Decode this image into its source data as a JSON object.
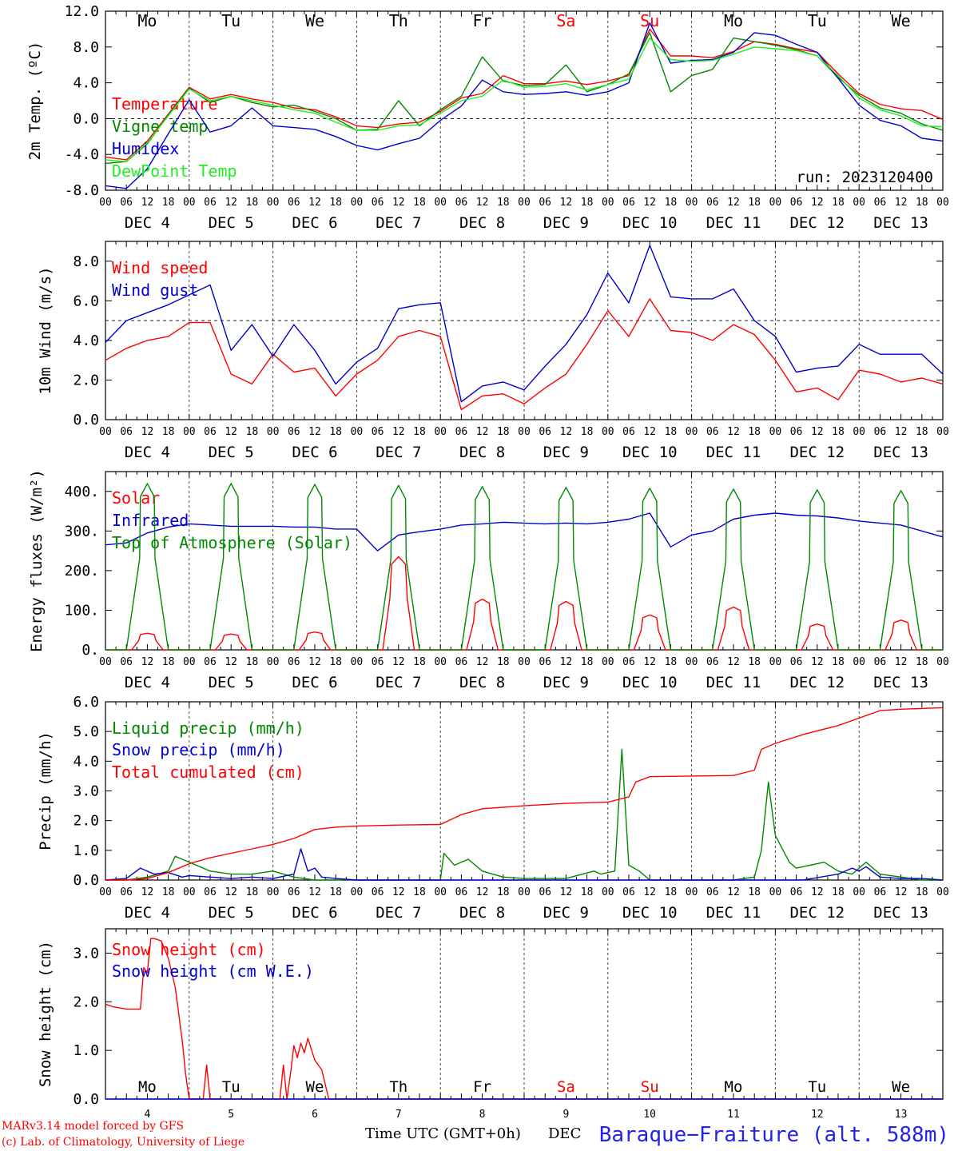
{
  "chart_data": [
    {
      "type": "line",
      "ylabel": "2m Temp. (ºC)",
      "ylim": [
        -8,
        12
      ],
      "yticks": [
        "12.0",
        "8.0",
        "4.0",
        "0.0",
        "-4.0",
        "-8.0"
      ],
      "x_unit": "hours since DEC 4 00 UTC",
      "series": [
        {
          "name": "Temperature",
          "color": "#ff0000",
          "x": [
            0,
            6,
            12,
            18,
            24,
            30,
            36,
            42,
            48,
            54,
            60,
            66,
            72,
            78,
            84,
            90,
            96,
            102,
            108,
            114,
            120,
            126,
            132,
            138,
            144,
            150,
            156,
            162,
            168,
            174,
            180,
            186,
            192,
            198,
            204,
            210,
            216,
            222,
            228,
            234,
            240
          ],
          "y": [
            -4.3,
            -4.6,
            -2.5,
            0.5,
            3.5,
            2.2,
            2.7,
            2.2,
            1.8,
            1.2,
            1.0,
            0.2,
            -0.8,
            -1.0,
            -0.6,
            -0.4,
            0.8,
            2.3,
            2.8,
            4.8,
            3.9,
            3.9,
            4.2,
            3.8,
            4.2,
            4.8,
            10.0,
            7.0,
            7.0,
            6.8,
            7.5,
            8.6,
            8.3,
            7.8,
            7.4,
            5.0,
            2.8,
            1.6,
            1.1,
            0.9,
            -0.1
          ]
        },
        {
          "name": "Vigne temp",
          "color": "#008800",
          "x": [
            0,
            6,
            12,
            18,
            24,
            30,
            36,
            42,
            48,
            54,
            60,
            66,
            72,
            78,
            84,
            90,
            96,
            102,
            108,
            114,
            120,
            126,
            132,
            138,
            144,
            150,
            156,
            162,
            168,
            174,
            180,
            186,
            192,
            198,
            204,
            210,
            216,
            222,
            228,
            234,
            240
          ],
          "y": [
            -5.0,
            -4.8,
            -2.8,
            0.4,
            3.4,
            1.8,
            2.5,
            1.8,
            1.3,
            1.5,
            0.8,
            0.0,
            -1.3,
            -1.2,
            2.0,
            -0.8,
            1.0,
            2.5,
            6.9,
            4.2,
            3.7,
            3.8,
            6.0,
            3.0,
            3.8,
            5.0,
            9.6,
            3.0,
            4.8,
            5.5,
            9.0,
            8.6,
            8.2,
            7.7,
            7.0,
            4.6,
            2.6,
            1.2,
            0.6,
            -0.6,
            -1.3
          ]
        },
        {
          "name": "Humidex",
          "color": "#0000cc",
          "x": [
            0,
            6,
            12,
            18,
            24,
            30,
            36,
            42,
            48,
            54,
            60,
            66,
            72,
            78,
            84,
            90,
            96,
            102,
            108,
            114,
            120,
            126,
            132,
            138,
            144,
            150,
            156,
            162,
            168,
            174,
            180,
            186,
            192,
            198,
            204,
            210,
            216,
            222,
            228,
            234,
            240
          ],
          "y": [
            -7.5,
            -7.8,
            -5.6,
            -1.7,
            2.1,
            -1.5,
            -0.8,
            1.2,
            -0.8,
            -1.0,
            -1.2,
            -2.0,
            -3.0,
            -3.5,
            -2.8,
            -2.2,
            -0.2,
            1.4,
            4.3,
            3.0,
            2.7,
            2.8,
            3.0,
            2.6,
            3.0,
            4.0,
            10.7,
            6.2,
            6.5,
            6.6,
            7.4,
            9.6,
            9.3,
            8.3,
            7.4,
            4.5,
            1.5,
            -0.2,
            -0.8,
            -2.2,
            -2.5
          ]
        },
        {
          "name": "DewPoint Temp",
          "color": "#22ee22",
          "x": [
            0,
            6,
            12,
            18,
            24,
            30,
            36,
            42,
            48,
            54,
            60,
            66,
            72,
            78,
            84,
            90,
            96,
            102,
            108,
            114,
            120,
            126,
            132,
            138,
            144,
            150,
            156,
            162,
            168,
            174,
            180,
            186,
            192,
            198,
            204,
            210,
            216,
            222,
            228,
            234,
            240
          ],
          "y": [
            -4.6,
            -4.8,
            -2.7,
            0.3,
            3.3,
            2.0,
            2.5,
            2.0,
            1.5,
            1.0,
            0.6,
            -0.4,
            -1.3,
            -1.3,
            -0.8,
            -0.7,
            0.6,
            2.0,
            2.5,
            4.3,
            3.5,
            3.6,
            3.9,
            3.2,
            3.8,
            4.4,
            9.0,
            6.6,
            6.4,
            6.5,
            7.2,
            8.0,
            7.8,
            7.6,
            7.0,
            4.8,
            2.3,
            1.0,
            0.3,
            -0.8,
            -0.9
          ]
        }
      ],
      "annotations": [
        "run: 2023120400"
      ]
    },
    {
      "type": "line",
      "ylabel": "10m Wind (m/s)",
      "ylim": [
        0,
        9
      ],
      "yticks": [
        "8.0",
        "6.0",
        "4.0",
        "2.0",
        "0.0"
      ],
      "x_unit": "hours since DEC 4 00 UTC",
      "series": [
        {
          "name": "Wind speed",
          "color": "#ff0000",
          "x": [
            0,
            6,
            12,
            18,
            24,
            30,
            36,
            42,
            48,
            54,
            60,
            66,
            72,
            78,
            84,
            90,
            96,
            102,
            108,
            114,
            120,
            126,
            132,
            138,
            144,
            150,
            156,
            162,
            168,
            174,
            180,
            186,
            192,
            198,
            204,
            210,
            216,
            222,
            228,
            234,
            240
          ],
          "y": [
            3.0,
            3.6,
            4.0,
            4.2,
            4.9,
            4.9,
            2.3,
            1.8,
            3.3,
            2.4,
            2.6,
            1.2,
            2.3,
            3.0,
            4.2,
            4.5,
            4.2,
            0.5,
            1.2,
            1.3,
            0.8,
            1.6,
            2.3,
            3.8,
            5.5,
            4.2,
            6.1,
            4.5,
            4.4,
            4.0,
            4.8,
            4.3,
            3.0,
            1.4,
            1.6,
            1.0,
            2.5,
            2.3,
            1.9,
            2.1,
            1.8
          ]
        },
        {
          "name": "Wind gust",
          "color": "#0000cc",
          "x": [
            0,
            6,
            12,
            18,
            24,
            30,
            36,
            42,
            48,
            54,
            60,
            66,
            72,
            78,
            84,
            90,
            96,
            102,
            108,
            114,
            120,
            126,
            132,
            138,
            144,
            150,
            156,
            162,
            168,
            174,
            180,
            186,
            192,
            198,
            204,
            210,
            216,
            222,
            228,
            234,
            240
          ],
          "y": [
            3.9,
            5.0,
            5.4,
            5.8,
            6.3,
            6.8,
            3.5,
            4.8,
            3.2,
            4.8,
            3.5,
            1.8,
            2.9,
            3.6,
            5.6,
            5.8,
            5.9,
            0.9,
            1.7,
            1.9,
            1.5,
            2.7,
            3.8,
            5.3,
            7.4,
            5.9,
            8.8,
            6.2,
            6.1,
            6.1,
            6.6,
            5.0,
            4.2,
            2.4,
            2.6,
            2.7,
            3.8,
            3.3,
            3.3,
            3.3,
            2.3
          ]
        }
      ],
      "reference_line": 5.0
    },
    {
      "type": "line",
      "ylabel": "Energy fluxes (W/m²)",
      "ylim": [
        0,
        450
      ],
      "yticks": [
        "400.",
        "300.",
        "200.",
        "100.",
        "0."
      ],
      "x_unit": "hours since DEC 4 00 UTC",
      "series": [
        {
          "name": "Solar",
          "color": "#ff0000",
          "daily_peak_hour": 12,
          "peaks": [
            42,
            40,
            45,
            235,
            128,
            122,
            88,
            108,
            65,
            75
          ]
        },
        {
          "name": "Infrared",
          "color": "#0000cc",
          "x": [
            0,
            6,
            12,
            18,
            24,
            30,
            36,
            42,
            48,
            54,
            60,
            66,
            72,
            78,
            84,
            90,
            96,
            102,
            108,
            114,
            120,
            126,
            132,
            138,
            144,
            150,
            156,
            162,
            168,
            174,
            180,
            186,
            192,
            198,
            204,
            210,
            216,
            222,
            228,
            234,
            240
          ],
          "y": [
            265,
            270,
            295,
            310,
            318,
            315,
            312,
            312,
            312,
            310,
            310,
            305,
            305,
            250,
            290,
            298,
            305,
            315,
            318,
            322,
            320,
            318,
            320,
            318,
            322,
            330,
            345,
            260,
            290,
            300,
            330,
            340,
            345,
            340,
            338,
            333,
            325,
            320,
            315,
            300,
            285
          ]
        },
        {
          "name": "Top of Atmosphere (Solar)",
          "color": "#008800",
          "daily_peak_hour": 12,
          "peaks": [
            420,
            420,
            418,
            415,
            412,
            410,
            408,
            406,
            404,
            402
          ]
        }
      ]
    },
    {
      "type": "line",
      "ylabel": "Precip (mm/h)",
      "ylim": [
        0,
        6
      ],
      "yticks": [
        "6.0",
        "5.0",
        "4.0",
        "3.0",
        "2.0",
        "1.0",
        "0.0"
      ],
      "x_unit": "hours since DEC 4 00 UTC",
      "series": [
        {
          "name": "Liquid precip (mm/h)",
          "color": "#008800",
          "x": [
            0,
            6,
            12,
            18,
            20,
            22,
            24,
            30,
            36,
            42,
            48,
            54,
            60,
            66,
            72,
            84,
            96,
            97,
            100,
            104,
            108,
            114,
            120,
            132,
            140,
            142,
            146,
            148,
            150,
            153,
            156,
            168,
            180,
            186,
            188,
            190,
            192,
            196,
            198,
            206,
            210,
            214,
            218,
            222,
            228,
            234,
            240
          ],
          "y": [
            0,
            0,
            0.1,
            0.3,
            0.8,
            0.7,
            0.6,
            0.3,
            0.2,
            0.2,
            0.3,
            0.1,
            0.0,
            0.0,
            0.0,
            0.0,
            0.0,
            0.9,
            0.5,
            0.7,
            0.3,
            0.1,
            0.05,
            0.05,
            0.3,
            0.2,
            0.3,
            4.4,
            0.5,
            0.3,
            0.0,
            0.0,
            0.0,
            0.1,
            1.0,
            3.3,
            1.5,
            0.6,
            0.4,
            0.6,
            0.3,
            0.2,
            0.6,
            0.2,
            0.1,
            0.0,
            0.0
          ]
        },
        {
          "name": "Snow precip (mm/h)",
          "color": "#0000cc",
          "x": [
            0,
            6,
            10,
            14,
            18,
            22,
            24,
            30,
            36,
            42,
            48,
            54,
            56,
            58,
            60,
            62,
            66,
            72,
            80,
            96,
            120,
            168,
            200,
            210,
            214,
            216,
            218,
            222,
            228,
            234,
            240
          ],
          "y": [
            0,
            0.05,
            0.4,
            0.2,
            0.25,
            0.1,
            0.15,
            0.1,
            0.05,
            0.1,
            0.05,
            0.2,
            1.05,
            0.3,
            0.4,
            0.1,
            0.05,
            0.0,
            0.0,
            0.0,
            0.0,
            0.0,
            0.0,
            0.2,
            0.4,
            0.3,
            0.45,
            0.1,
            0.05,
            0.05,
            0.0
          ]
        },
        {
          "name": "Total cumulated (cm)",
          "color": "#ff0000",
          "x": [
            0,
            6,
            12,
            18,
            24,
            30,
            36,
            42,
            48,
            54,
            60,
            66,
            72,
            84,
            96,
            102,
            108,
            120,
            132,
            144,
            150,
            152,
            156,
            168,
            180,
            186,
            188,
            192,
            200,
            210,
            216,
            222,
            228,
            240
          ],
          "y": [
            0,
            0,
            0.05,
            0.25,
            0.55,
            0.75,
            0.9,
            1.05,
            1.2,
            1.4,
            1.7,
            1.78,
            1.82,
            1.85,
            1.87,
            2.2,
            2.4,
            2.5,
            2.58,
            2.62,
            2.8,
            3.3,
            3.48,
            3.5,
            3.52,
            3.7,
            4.4,
            4.6,
            4.9,
            5.2,
            5.45,
            5.7,
            5.75,
            5.8
          ]
        }
      ]
    },
    {
      "type": "line",
      "ylabel": "Snow height (cm)",
      "ylim": [
        0,
        3.5
      ],
      "yticks": [
        "3.0",
        "2.0",
        "1.0",
        "0.0"
      ],
      "x_unit": "hours since DEC 4 00 UTC",
      "series": [
        {
          "name": "Snow height (cm)",
          "color": "#ff0000",
          "x": [
            0,
            2,
            6,
            10,
            11,
            12,
            13,
            14,
            16,
            18,
            20,
            22,
            23,
            24,
            25,
            26,
            28,
            29,
            30,
            48,
            50,
            51,
            52,
            53,
            54,
            55,
            56,
            57,
            58,
            60,
            62,
            64,
            65,
            240
          ],
          "y": [
            1.95,
            1.9,
            1.85,
            1.85,
            2.7,
            2.6,
            3.3,
            3.3,
            3.25,
            2.9,
            2.3,
            1.2,
            0.5,
            0,
            0,
            0,
            0,
            0.7,
            0,
            0,
            0,
            0.7,
            0,
            0.5,
            1.1,
            0.85,
            1.15,
            0.95,
            1.25,
            0.8,
            0.6,
            0,
            0,
            0
          ]
        },
        {
          "name": "Snow height (cm W.E.)",
          "color": "#0000cc",
          "x": [
            0,
            240
          ],
          "y": [
            0,
            0
          ]
        }
      ]
    }
  ],
  "days_top": [
    "Mo",
    "Tu",
    "We",
    "Th",
    "Fr",
    "Sa",
    "Su",
    "Mo",
    "Tu",
    "We"
  ],
  "day_colors": [
    "#000000",
    "#000000",
    "#000000",
    "#000000",
    "#000000",
    "#ff0000",
    "#ff0000",
    "#000000",
    "#000000",
    "#000000"
  ],
  "hour_ticks": [
    "00",
    "06",
    "12",
    "18"
  ],
  "hour_end": "00",
  "date_labels": [
    "DEC  4",
    "DEC  5",
    "DEC  6",
    "DEC  7",
    "DEC  8",
    "DEC  9",
    "DEC 10",
    "DEC 11",
    "DEC 12",
    "DEC 13"
  ],
  "bottom_days": [
    "Mo",
    "Tu",
    "We",
    "Th",
    "Fr",
    "Sa",
    "Su",
    "Mo",
    "Tu",
    "We"
  ],
  "bottom_day_numbers": [
    "4",
    "5",
    "6",
    "7",
    "8",
    "9",
    "10",
    "11",
    "12",
    "13"
  ],
  "footer": {
    "model_line": "MARv3.14 model forced by GFS",
    "copyright_line": "(c) Lab. of Climatology, University of Liege",
    "xlabel": "Time UTC (GMT+0h)",
    "month": "DEC",
    "station": "Baraque−Fraiture (alt. 588m)"
  }
}
